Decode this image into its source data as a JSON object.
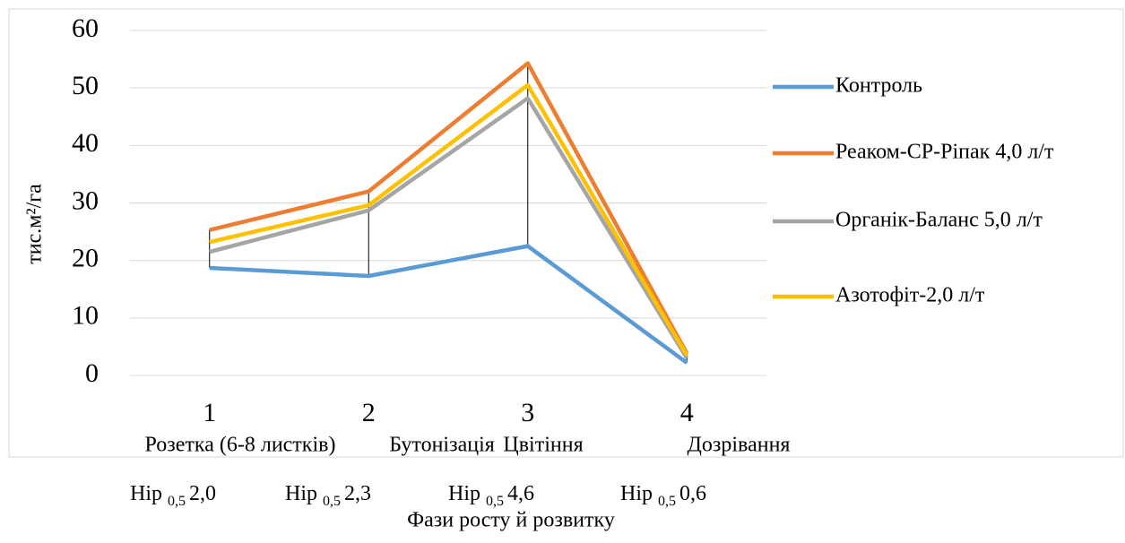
{
  "chart_data": {
    "type": "line",
    "categories": [
      "1",
      "2",
      "3",
      "4"
    ],
    "series": [
      {
        "name": "Контроль",
        "color": "#5b9bd5",
        "values": [
          18.7,
          17.3,
          22.5,
          2.2
        ]
      },
      {
        "name": "Реаком-СР-Ріпак 4,0 л/т",
        "color": "#ed7d31",
        "values": [
          25.3,
          32.0,
          54.3,
          3.8
        ]
      },
      {
        "name": "Органік-Баланс 5,0 л/т",
        "color": "#a5a5a5",
        "values": [
          21.5,
          28.7,
          48.2,
          3.0
        ]
      },
      {
        "name": "Азотофіт-2,0 л/т",
        "color": "#ffc000",
        "values": [
          23.2,
          29.6,
          50.5,
          3.5
        ]
      }
    ],
    "phases": [
      "Розетка (6-8 листків)",
      "Бутонізація",
      "Цвітіння",
      "Дозрівання"
    ],
    "lsd": [
      {
        "label": "Нір",
        "sub": "0,5",
        "value": "2,0"
      },
      {
        "label": "Нір",
        "sub": "0,5",
        "value": "2,3"
      },
      {
        "label": "Нір",
        "sub": "0,5",
        "value": "4,6"
      },
      {
        "label": "Нір",
        "sub": "0,5",
        "value": "0,6"
      }
    ],
    "x_label": "Фази росту й розвитку",
    "y_label": "тис.м²/га",
    "ylim": [
      0,
      60
    ],
    "yticks": [
      0,
      10,
      20,
      30,
      40,
      50,
      60
    ],
    "grid": true,
    "legend": "right"
  }
}
